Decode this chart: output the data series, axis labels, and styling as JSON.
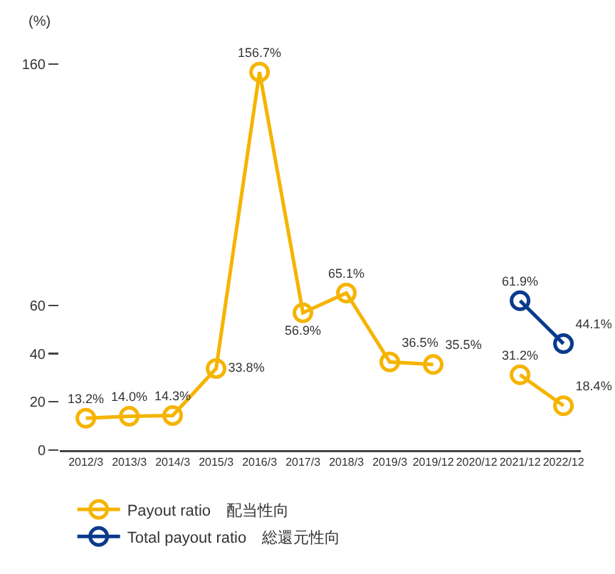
{
  "chart_data": {
    "type": "line",
    "ylabel": "(%)",
    "categories": [
      "2012/3",
      "2013/3",
      "2014/3",
      "2015/3",
      "2016/3",
      "2017/3",
      "2018/3",
      "2019/3",
      "2019/12",
      "2020/12",
      "2021/12",
      "2022/12"
    ],
    "series": [
      {
        "name": "Payout ratio　配当性向",
        "color": "#f5b400",
        "values": [
          13.2,
          14.0,
          14.3,
          33.8,
          156.7,
          56.9,
          65.1,
          36.5,
          35.5,
          null,
          31.2,
          18.4
        ],
        "value_labels": [
          "13.2%",
          "14.0%",
          "14.3%",
          "33.8%",
          "156.7%",
          "56.9%",
          "65.1%",
          "36.5%",
          "35.5%",
          null,
          "31.2%",
          "18.4%"
        ]
      },
      {
        "name": "Total payout ratio　総還元性向",
        "color": "#0a3a8c",
        "values": [
          null,
          null,
          null,
          null,
          null,
          null,
          null,
          null,
          null,
          null,
          61.9,
          44.1
        ],
        "value_labels": [
          null,
          null,
          null,
          null,
          null,
          null,
          null,
          null,
          null,
          null,
          "61.9%",
          "44.1%"
        ]
      }
    ],
    "ylim": [
      0,
      160
    ],
    "yticks": [
      0,
      20,
      40,
      60,
      160
    ],
    "grid": false,
    "legend": "bottom left",
    "marker": "circle",
    "line_style": "solid"
  }
}
